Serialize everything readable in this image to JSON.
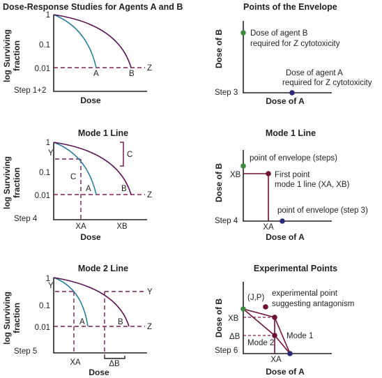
{
  "colors": {
    "purple": "#5a1252",
    "teal": "#2a7e9a",
    "dashed": "#7a1e57",
    "green": "#3c8a3c",
    "navy": "#2b2a78",
    "maroon": "#6e1232",
    "axis": "#231f20"
  },
  "panel1": {
    "title": "Dose-Response Studies for Agents A and B",
    "ylabel_1": "log Surviving",
    "ylabel_2": "fraction",
    "xlabel": "Dose",
    "tick_1": "1",
    "tick_01": "0.1",
    "tick_001": "0.01",
    "step": "Step 1+2",
    "label_a": "A",
    "label_b": "B",
    "label_z": "Z"
  },
  "panel2": {
    "title": "Points of the Envelope",
    "ylabel": "Dose of B",
    "xlabel": "Dose of A",
    "step": "Step 3",
    "note_b_1": "Dose of agent B",
    "note_b_2": "required for Z cytotoxicity",
    "note_a_1": "Dose of agent A",
    "note_a_2": "required for Z cytotoxicity"
  },
  "panel3": {
    "title": "Mode 1 Line",
    "ylabel_1": "log Surviving",
    "ylabel_2": "fraction",
    "xlabel": "Dose",
    "tick_1": "1",
    "tick_01": "0.1",
    "tick_001": "0.01",
    "step": "Step 4",
    "label_y": "Y",
    "label_c1": "C",
    "label_c2": "C",
    "label_a": "A",
    "label_b": "B",
    "label_z": "Z",
    "label_xa": "XA",
    "label_xb": "XB"
  },
  "panel4": {
    "title": "Mode 1 Line",
    "ylabel": "Dose of B",
    "xlabel": "Dose of A",
    "step": "Step 4",
    "label_xb": "XB",
    "label_xa": "XA",
    "note_env": "point of envelope (steps)",
    "note_first_1": "First point",
    "note_first_2": "mode 1 line (XA, XB)",
    "note_env3": "point of envelope (step 3)"
  },
  "panel5": {
    "title": "Mode 2 Line",
    "ylabel_1": "log Surviving",
    "ylabel_2": "fraction",
    "xlabel": "Dose",
    "tick_1": "1",
    "tick_01": "0.1",
    "tick_001": "0.01",
    "step": "Step 5",
    "label_y1": "Y",
    "label_y2": "Y",
    "label_a": "A",
    "label_b": "B",
    "label_z": "Z",
    "label_xa": "XA",
    "label_db": "ΔB"
  },
  "panel6": {
    "title": "Experimental Points",
    "ylabel": "Dose of B",
    "xlabel": "Dose of A",
    "step": "Step 6",
    "label_jp": "(J,P)",
    "note_exp_1": "experimental point",
    "note_exp_2": "suggesting antagonism",
    "label_xb": "XB",
    "label_db": "ΔB",
    "label_mode2": "Mode 2",
    "label_mode1": "Mode 1",
    "label_xa": "XA"
  }
}
